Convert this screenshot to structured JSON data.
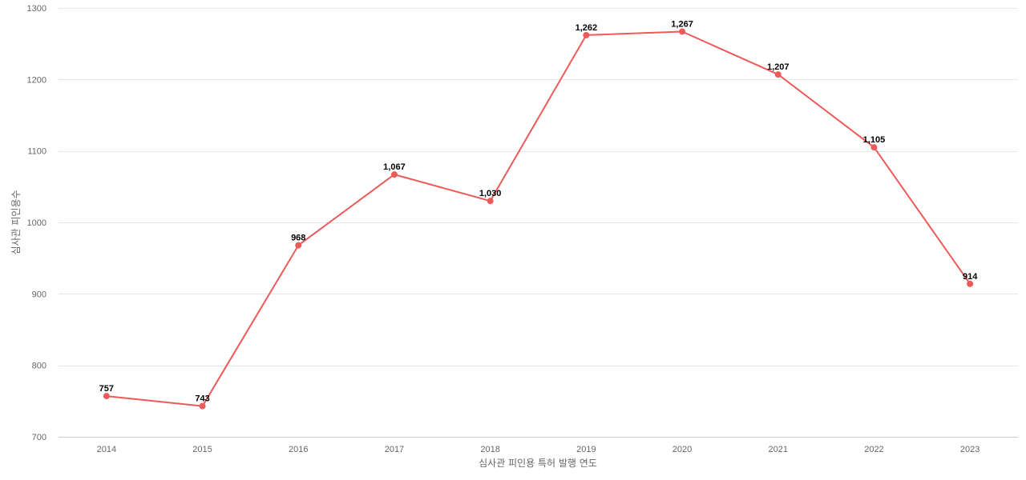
{
  "chart_data": {
    "type": "line",
    "title": "",
    "xlabel": "심사관 피인용 특허 발행 연도",
    "ylabel": "심사관 피인용수",
    "categories": [
      "2014",
      "2015",
      "2016",
      "2017",
      "2018",
      "2019",
      "2020",
      "2021",
      "2022",
      "2023"
    ],
    "series": [
      {
        "values": [
          757,
          743,
          968,
          1067,
          1030,
          1262,
          1267,
          1207,
          1105,
          914
        ],
        "labels": [
          "757",
          "743",
          "968",
          "1,067",
          "1,030",
          "1,262",
          "1,267",
          "1,207",
          "1,105",
          "914"
        ],
        "color": "#ee5a5a"
      }
    ],
    "ylim": [
      700,
      1300
    ],
    "yticks": [
      "700",
      "800",
      "900",
      "1000",
      "1100",
      "1200",
      "1300"
    ],
    "grid": true,
    "legend": "none"
  }
}
